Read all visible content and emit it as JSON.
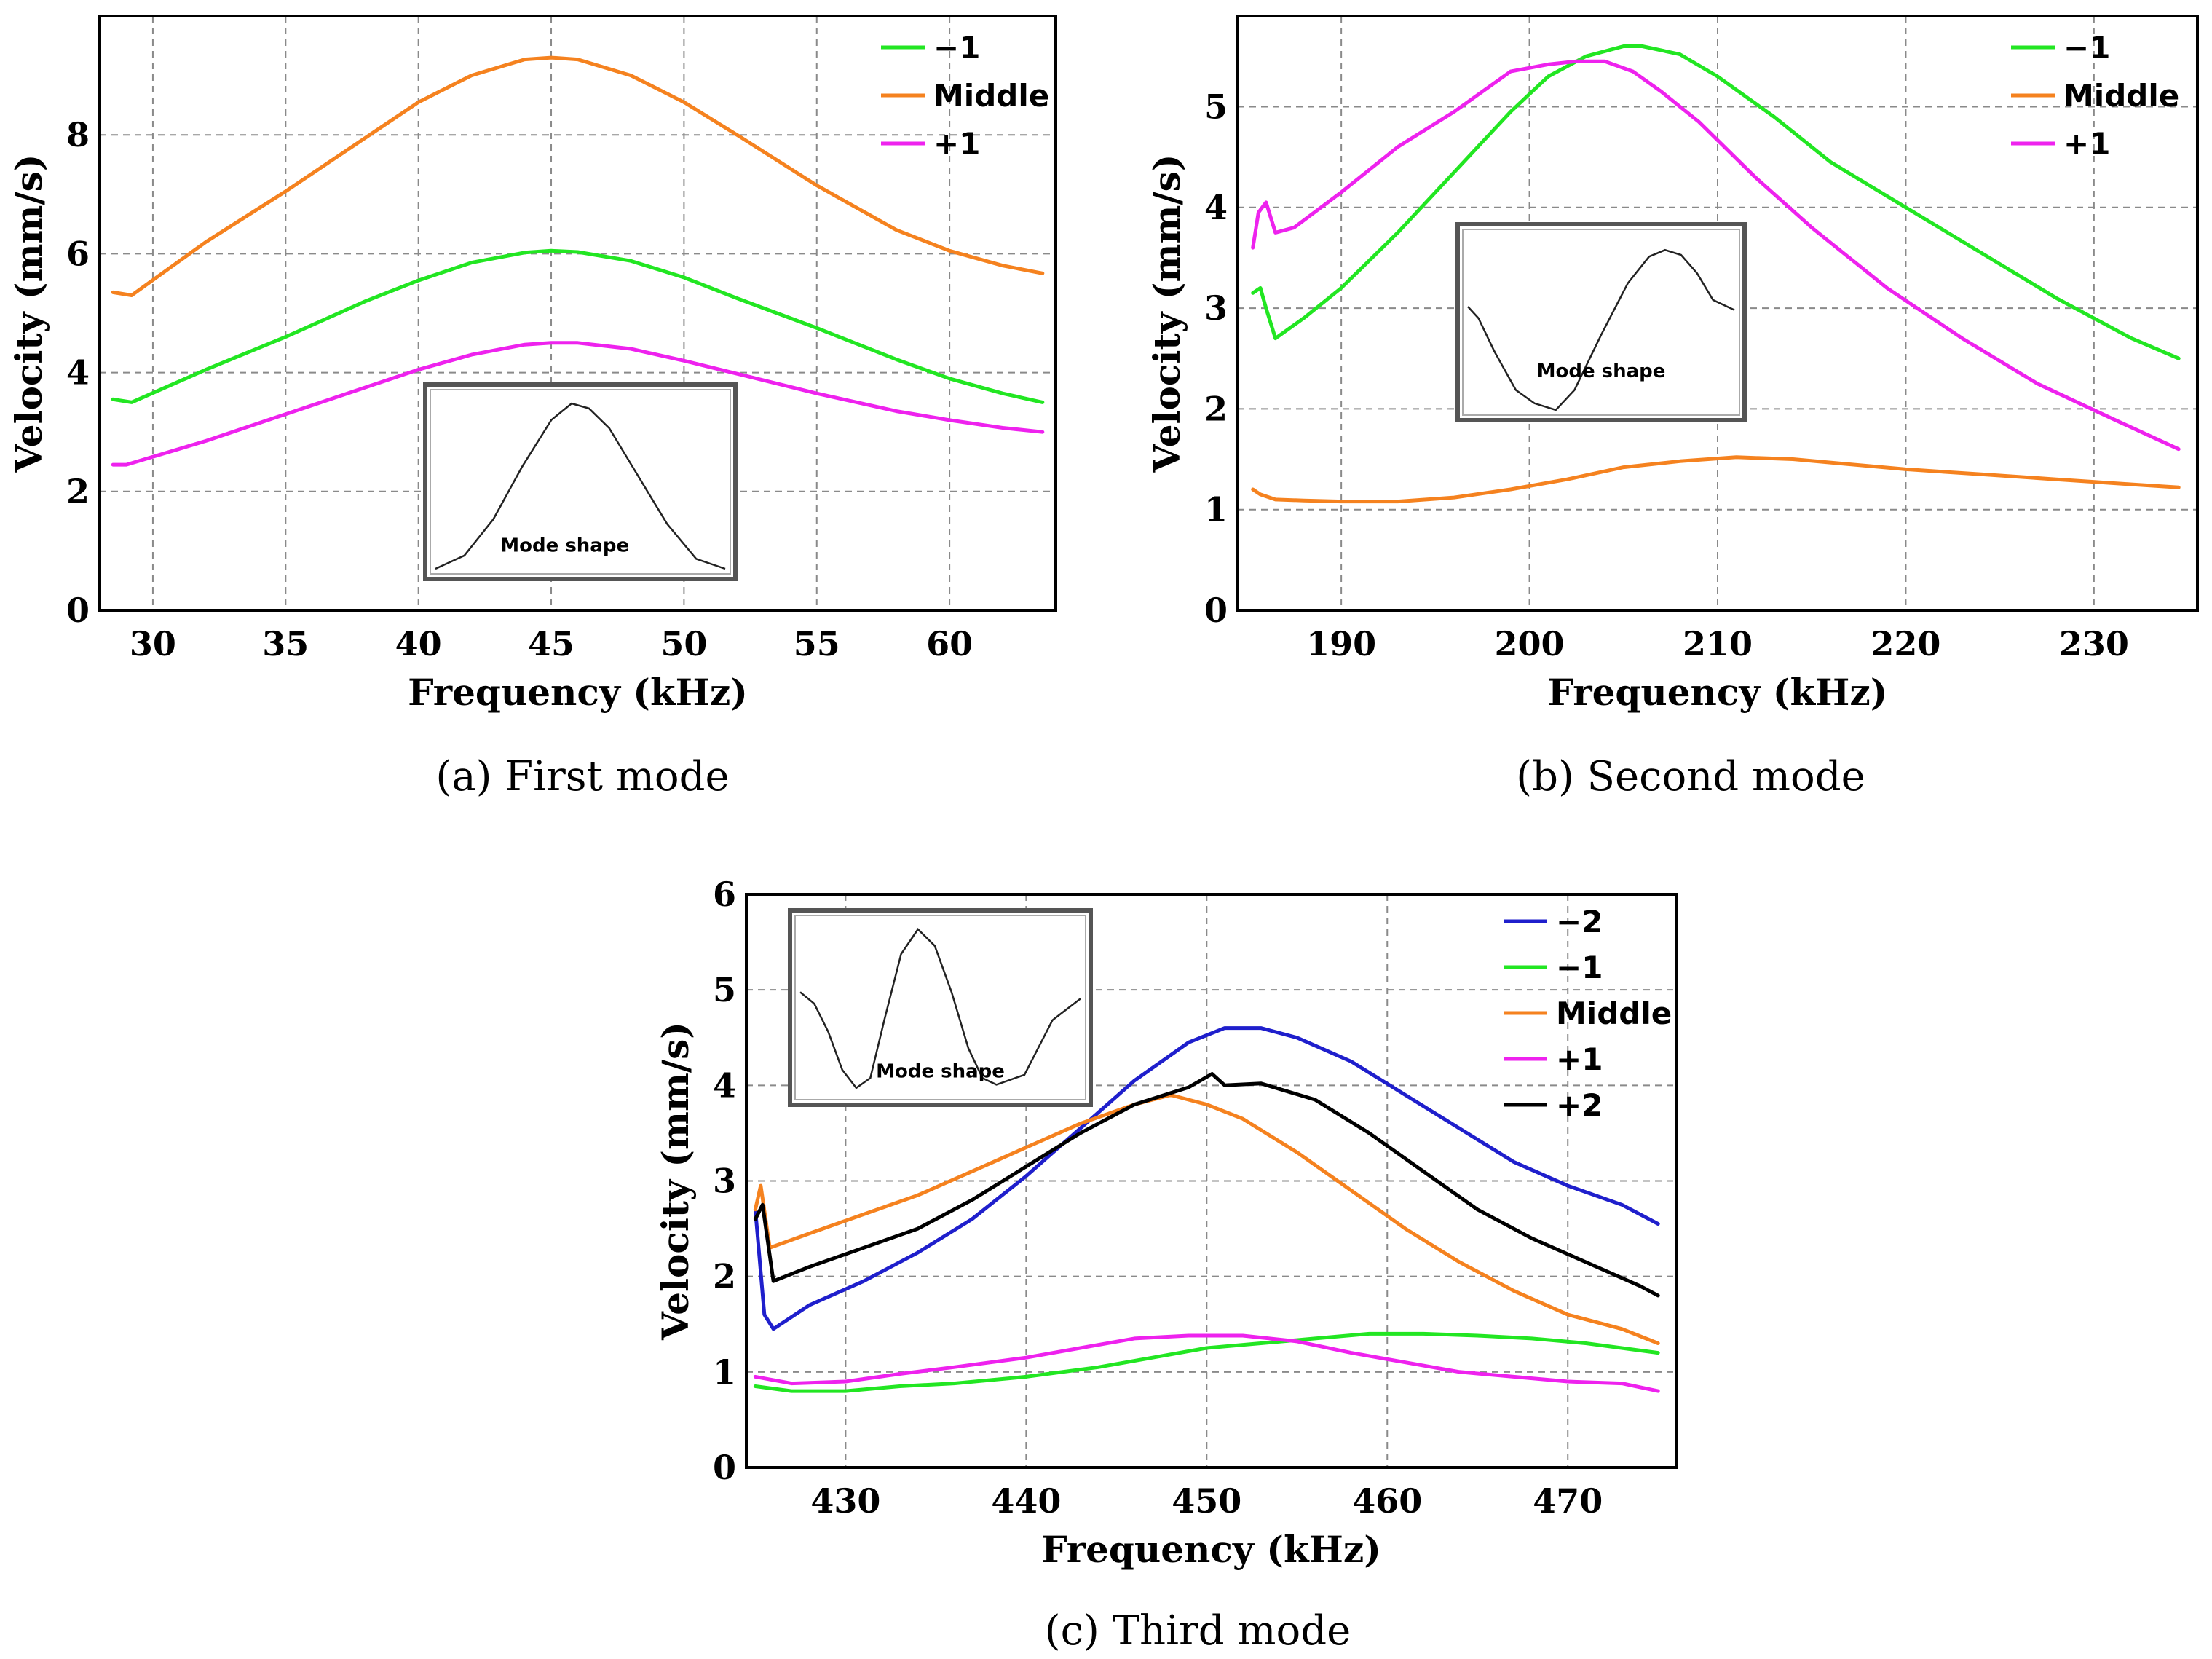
{
  "chart_data": [
    {
      "id": "a",
      "type": "line",
      "caption_letter": "(a)",
      "caption_text": "First mode",
      "xlabel": "Frequency (kHz)",
      "ylabel": "Velocity (mm/s)",
      "xlim": [
        28,
        64
      ],
      "ylim": [
        0,
        10
      ],
      "xticks": [
        30,
        35,
        40,
        45,
        50,
        55,
        60
      ],
      "yticks": [
        0,
        2,
        4,
        6,
        8
      ],
      "legend_position": "top-right",
      "inset": {
        "label": "Mode shape",
        "position": "bottom-center",
        "shape": [
          [
            0,
            0.0
          ],
          [
            0.1,
            0.08
          ],
          [
            0.2,
            0.3
          ],
          [
            0.3,
            0.62
          ],
          [
            0.4,
            0.9
          ],
          [
            0.47,
            1.0
          ],
          [
            0.53,
            0.97
          ],
          [
            0.6,
            0.85
          ],
          [
            0.7,
            0.56
          ],
          [
            0.8,
            0.27
          ],
          [
            0.9,
            0.06
          ],
          [
            1,
            0.0
          ]
        ]
      },
      "series": [
        {
          "name": "−1",
          "color": "#22e622",
          "x": [
            28.5,
            29.2,
            32,
            35,
            38,
            40,
            42,
            44,
            45,
            46,
            48,
            50,
            52,
            55,
            58,
            60,
            62,
            63.5
          ],
          "y": [
            3.55,
            3.5,
            4.05,
            4.6,
            5.2,
            5.55,
            5.85,
            6.02,
            6.05,
            6.03,
            5.88,
            5.6,
            5.25,
            4.75,
            4.22,
            3.9,
            3.65,
            3.5
          ]
        },
        {
          "name": "Middle",
          "color": "#f5821f",
          "x": [
            28.5,
            29.2,
            32,
            35,
            38,
            40,
            42,
            44,
            45,
            46,
            48,
            50,
            52,
            55,
            58,
            60,
            62,
            63.5
          ],
          "y": [
            5.35,
            5.3,
            6.2,
            7.05,
            7.95,
            8.55,
            9.0,
            9.27,
            9.3,
            9.27,
            9.0,
            8.55,
            8.0,
            7.15,
            6.4,
            6.05,
            5.8,
            5.67
          ]
        },
        {
          "name": "+1",
          "color": "#ee22ee",
          "x": [
            28.5,
            29,
            32,
            35,
            38,
            40,
            42,
            44,
            45,
            46,
            48,
            50,
            52,
            55,
            58,
            60,
            62,
            63.5
          ],
          "y": [
            2.45,
            2.45,
            2.85,
            3.3,
            3.75,
            4.05,
            4.3,
            4.47,
            4.5,
            4.5,
            4.4,
            4.2,
            3.98,
            3.65,
            3.35,
            3.2,
            3.07,
            3.0
          ]
        }
      ]
    },
    {
      "id": "b",
      "type": "line",
      "caption_letter": "(b)",
      "caption_text": "Second mode",
      "xlabel": "Frequency (kHz)",
      "ylabel": "Velocity (mm/s)",
      "xlim": [
        184.5,
        235.5
      ],
      "ylim": [
        0,
        5.9
      ],
      "xticks": [
        190,
        200,
        210,
        220,
        230
      ],
      "yticks": [
        0,
        1,
        2,
        3,
        4,
        5
      ],
      "legend_position": "top-right",
      "inset": {
        "label": "Mode shape",
        "position": "center",
        "shape": [
          [
            0,
            0.62
          ],
          [
            0.04,
            0.55
          ],
          [
            0.1,
            0.35
          ],
          [
            0.18,
            0.12
          ],
          [
            0.25,
            0.04
          ],
          [
            0.33,
            0.0
          ],
          [
            0.4,
            0.12
          ],
          [
            0.5,
            0.45
          ],
          [
            0.6,
            0.76
          ],
          [
            0.68,
            0.92
          ],
          [
            0.74,
            0.96
          ],
          [
            0.8,
            0.93
          ],
          [
            0.86,
            0.82
          ],
          [
            0.92,
            0.66
          ],
          [
            1,
            0.6
          ]
        ]
      },
      "series": [
        {
          "name": "−1",
          "color": "#22e622",
          "x": [
            185.3,
            185.7,
            186,
            186.5,
            188,
            190,
            193,
            196,
            199,
            201,
            203,
            205,
            206,
            208,
            210,
            213,
            216,
            220,
            224,
            228,
            232,
            234.5
          ],
          "y": [
            3.15,
            3.2,
            3.0,
            2.7,
            2.9,
            3.2,
            3.75,
            4.35,
            4.95,
            5.3,
            5.5,
            5.6,
            5.6,
            5.52,
            5.3,
            4.9,
            4.45,
            4.0,
            3.55,
            3.1,
            2.7,
            2.5
          ]
        },
        {
          "name": "Middle",
          "color": "#f5821f",
          "x": [
            185.3,
            185.7,
            186.5,
            188,
            190,
            193,
            196,
            199,
            202,
            205,
            208,
            211,
            214,
            217,
            220,
            224,
            228,
            232,
            234.5
          ],
          "y": [
            1.2,
            1.15,
            1.1,
            1.09,
            1.08,
            1.08,
            1.12,
            1.2,
            1.3,
            1.42,
            1.48,
            1.52,
            1.5,
            1.45,
            1.4,
            1.35,
            1.3,
            1.25,
            1.22
          ]
        },
        {
          "name": "+1",
          "color": "#ee22ee",
          "x": [
            185.3,
            185.6,
            186,
            186.5,
            187.5,
            190,
            193,
            196,
            199,
            201,
            202.5,
            204,
            205.5,
            207,
            209,
            212,
            215,
            219,
            223,
            227,
            231,
            234.5
          ],
          "y": [
            3.6,
            3.95,
            4.05,
            3.75,
            3.8,
            4.15,
            4.6,
            4.95,
            5.35,
            5.42,
            5.45,
            5.45,
            5.35,
            5.15,
            4.85,
            4.3,
            3.8,
            3.2,
            2.7,
            2.25,
            1.9,
            1.6
          ]
        }
      ]
    },
    {
      "id": "c",
      "type": "line",
      "caption_letter": "(c)",
      "caption_text": "Third mode",
      "xlabel": "Frequency (kHz)",
      "ylabel": "Velocity (mm/s)",
      "xlim": [
        424.5,
        476
      ],
      "ylim": [
        0,
        6
      ],
      "xticks": [
        430,
        440,
        450,
        460,
        470
      ],
      "yticks": [
        0,
        1,
        2,
        3,
        4,
        5,
        6
      ],
      "legend_position": "top-right",
      "inset": {
        "label": "Mode shape",
        "position": "top-left",
        "shape": [
          [
            0,
            0.62
          ],
          [
            0.05,
            0.55
          ],
          [
            0.1,
            0.38
          ],
          [
            0.15,
            0.15
          ],
          [
            0.2,
            0.04
          ],
          [
            0.25,
            0.1
          ],
          [
            0.3,
            0.45
          ],
          [
            0.36,
            0.85
          ],
          [
            0.42,
            1.0
          ],
          [
            0.48,
            0.9
          ],
          [
            0.54,
            0.62
          ],
          [
            0.6,
            0.28
          ],
          [
            0.65,
            0.1
          ],
          [
            0.7,
            0.06
          ],
          [
            0.8,
            0.12
          ],
          [
            0.9,
            0.45
          ],
          [
            1,
            0.58
          ]
        ]
      },
      "series": [
        {
          "name": "−2",
          "color": "#1f1fcc",
          "x": [
            425,
            425.5,
            426,
            428,
            431,
            434,
            437,
            440,
            443,
            446,
            449,
            451,
            453,
            455,
            458,
            461,
            464,
            467,
            470,
            473,
            475
          ],
          "y": [
            2.7,
            1.6,
            1.45,
            1.7,
            1.95,
            2.25,
            2.6,
            3.05,
            3.55,
            4.05,
            4.45,
            4.6,
            4.6,
            4.5,
            4.25,
            3.9,
            3.55,
            3.2,
            2.95,
            2.75,
            2.55
          ]
        },
        {
          "name": "−1",
          "color": "#22e622",
          "x": [
            425,
            427,
            430,
            433,
            436,
            440,
            444,
            447,
            450,
            453,
            456,
            459,
            462,
            465,
            468,
            471,
            475
          ],
          "y": [
            0.85,
            0.8,
            0.8,
            0.85,
            0.88,
            0.95,
            1.05,
            1.15,
            1.25,
            1.3,
            1.35,
            1.4,
            1.4,
            1.38,
            1.35,
            1.3,
            1.2
          ]
        },
        {
          "name": "Middle",
          "color": "#f5821f",
          "x": [
            425,
            425.3,
            425.8,
            428,
            431,
            434,
            437,
            440,
            443,
            446,
            448,
            450,
            452,
            455,
            458,
            461,
            464,
            467,
            470,
            473,
            475
          ],
          "y": [
            2.7,
            2.95,
            2.3,
            2.45,
            2.65,
            2.85,
            3.1,
            3.35,
            3.6,
            3.8,
            3.9,
            3.8,
            3.65,
            3.3,
            2.9,
            2.5,
            2.15,
            1.85,
            1.6,
            1.45,
            1.3
          ]
        },
        {
          "name": "+1",
          "color": "#ee22ee",
          "x": [
            425,
            427,
            430,
            433,
            436,
            440,
            443,
            446,
            449,
            452,
            455,
            458,
            461,
            464,
            467,
            470,
            473,
            475
          ],
          "y": [
            0.95,
            0.88,
            0.9,
            0.98,
            1.05,
            1.15,
            1.25,
            1.35,
            1.38,
            1.38,
            1.32,
            1.2,
            1.1,
            1.0,
            0.95,
            0.9,
            0.88,
            0.8
          ]
        },
        {
          "name": "+2",
          "color": "#000000",
          "x": [
            425,
            425.4,
            426,
            428,
            431,
            434,
            437,
            440,
            443,
            446,
            449,
            450.3,
            451,
            453,
            456,
            459,
            462,
            465,
            468,
            471,
            474,
            475
          ],
          "y": [
            2.6,
            2.75,
            1.95,
            2.1,
            2.3,
            2.5,
            2.8,
            3.15,
            3.5,
            3.8,
            3.98,
            4.12,
            4.0,
            4.02,
            3.85,
            3.5,
            3.1,
            2.7,
            2.4,
            2.15,
            1.9,
            1.8
          ]
        }
      ]
    }
  ]
}
